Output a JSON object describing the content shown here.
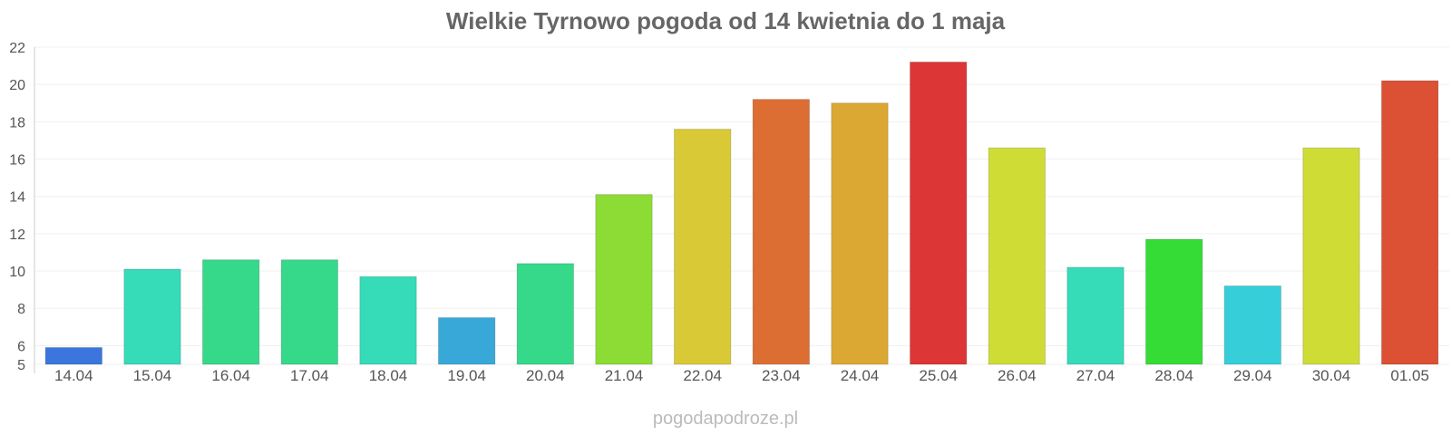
{
  "chart_data": {
    "type": "bar",
    "title": "Wielkie Tyrnowo pogoda od 14 kwietnia do 1 maja",
    "categories": [
      "14.04",
      "15.04",
      "16.04",
      "17.04",
      "18.04",
      "19.04",
      "20.04",
      "21.04",
      "22.04",
      "23.04",
      "24.04",
      "25.04",
      "26.04",
      "27.04",
      "28.04",
      "29.04",
      "30.04",
      "01.05"
    ],
    "values": [
      5.9,
      10.1,
      10.6,
      10.6,
      9.7,
      7.5,
      10.4,
      14.1,
      17.6,
      19.2,
      19.0,
      21.2,
      16.6,
      10.2,
      11.7,
      9.2,
      16.6,
      20.2
    ],
    "colors": [
      "#3a76dc",
      "#36dbb8",
      "#36d98a",
      "#36d98a",
      "#36dbb8",
      "#38a8d8",
      "#36d98a",
      "#8ddc36",
      "#d9c936",
      "#dc6e34",
      "#dca834",
      "#dc3636",
      "#cfdc36",
      "#36dbb8",
      "#36dc36",
      "#36cfd9",
      "#cfdc36",
      "#dc5034"
    ],
    "ylim": [
      5,
      22
    ],
    "yticks": [
      5,
      6,
      8,
      10,
      12,
      14,
      16,
      18,
      20,
      22
    ],
    "xlabel": "",
    "ylabel": "",
    "grid": true
  },
  "footer": "pogodapodroze.pl"
}
